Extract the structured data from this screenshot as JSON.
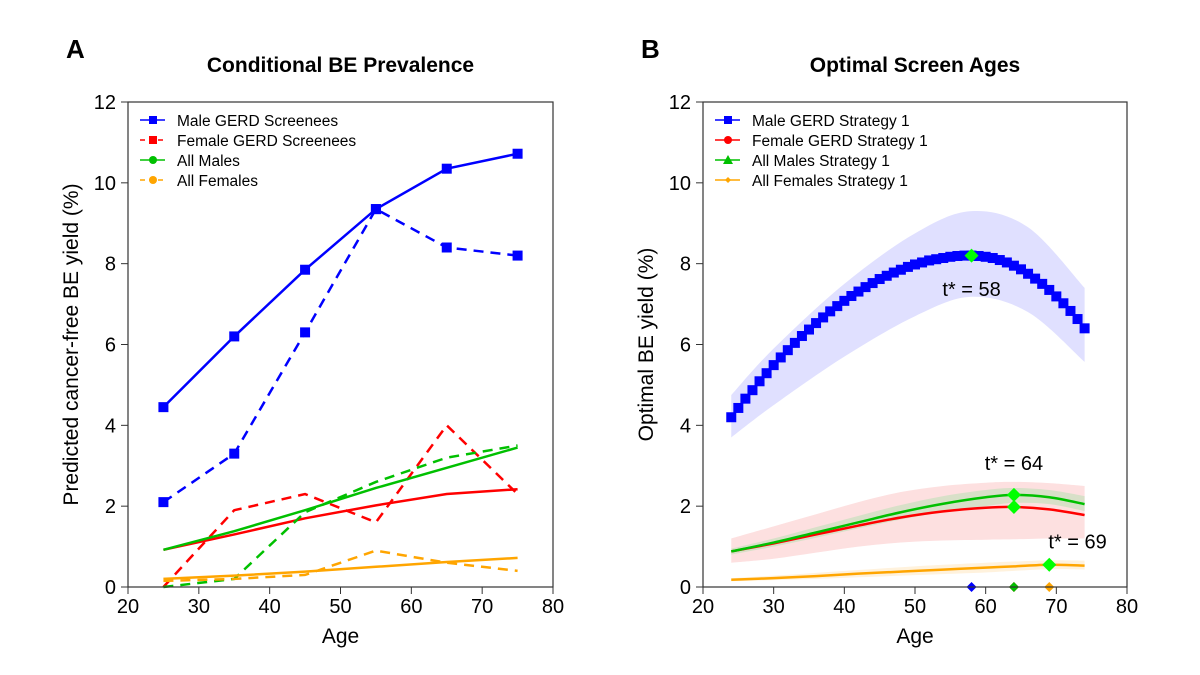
{
  "chart_data": [
    {
      "panel_label": "A",
      "type": "line",
      "title": "Conditional BE Prevalence",
      "xlabel": "Age",
      "ylabel": "Predicted cancer-free BE yield (%)",
      "xlim": [
        20,
        80
      ],
      "ylim": [
        0,
        12
      ],
      "xticks": [
        20,
        30,
        40,
        50,
        60,
        70,
        80
      ],
      "yticks": [
        0,
        2,
        4,
        6,
        8,
        10,
        12
      ],
      "grid": false,
      "legend_position": "top-left",
      "x": [
        25,
        35,
        45,
        55,
        65,
        75
      ],
      "legend": [
        {
          "name": "Male GERD Screenees",
          "color": "#0000ff",
          "marker": "square",
          "dash": "solid"
        },
        {
          "name": "Female GERD Screenees",
          "color": "#ff0000",
          "marker": "square",
          "dash": "dashed"
        },
        {
          "name": "All Males",
          "color": "#00c000",
          "marker": "circle",
          "dash": "solid"
        },
        {
          "name": "All Females",
          "color": "#ffa500",
          "marker": "circle",
          "dash": "dashed"
        }
      ],
      "series": [
        {
          "color": "#0000ff",
          "dash": false,
          "markers": true,
          "values": [
            4.45,
            6.2,
            7.85,
            9.35,
            10.35,
            10.72
          ]
        },
        {
          "color": "#0000ff",
          "dash": true,
          "markers": true,
          "values": [
            2.1,
            3.3,
            6.3,
            9.35,
            8.4,
            8.2
          ]
        },
        {
          "color": "#ff0000",
          "dash": false,
          "markers": false,
          "values": [
            0.92,
            1.3,
            1.7,
            2.02,
            2.3,
            2.42
          ]
        },
        {
          "color": "#ff0000",
          "dash": true,
          "markers": false,
          "values": [
            0.0,
            1.9,
            2.3,
            1.6,
            4.0,
            2.3
          ]
        },
        {
          "color": "#00c000",
          "dash": false,
          "markers": false,
          "values": [
            0.92,
            1.38,
            1.9,
            2.45,
            2.95,
            3.45
          ]
        },
        {
          "color": "#00c000",
          "dash": true,
          "markers": false,
          "values": [
            0.0,
            0.2,
            1.85,
            2.6,
            3.2,
            3.5
          ]
        },
        {
          "color": "#ffa500",
          "dash": false,
          "markers": false,
          "values": [
            0.2,
            0.28,
            0.38,
            0.5,
            0.62,
            0.72
          ]
        },
        {
          "color": "#ffa500",
          "dash": true,
          "markers": false,
          "values": [
            0.15,
            0.2,
            0.3,
            0.9,
            0.6,
            0.4
          ]
        }
      ]
    },
    {
      "panel_label": "B",
      "type": "line",
      "title": "Optimal Screen Ages",
      "xlabel": "Age",
      "ylabel": "Optimal BE yield (%)",
      "xlim": [
        20,
        80
      ],
      "ylim": [
        0,
        12
      ],
      "xticks": [
        20,
        30,
        40,
        50,
        60,
        70,
        80
      ],
      "yticks": [
        0,
        2,
        4,
        6,
        8,
        10,
        12
      ],
      "grid": false,
      "legend_position": "top-left",
      "legend": [
        {
          "name": "Male GERD Strategy 1",
          "color": "#0000ff",
          "marker": "square"
        },
        {
          "name": "Female GERD Strategy 1",
          "color": "#ff0000",
          "marker": "circle"
        },
        {
          "name": "All Males Strategy 1",
          "color": "#00c000",
          "marker": "triangle"
        },
        {
          "name": "All Females Strategy 1",
          "color": "#ffa500",
          "marker": "diamond"
        }
      ],
      "male_gerd": {
        "color": "#0000ff",
        "band_color": "#e0e0ff",
        "x_start": 24,
        "values": [
          4.2,
          4.43,
          4.66,
          4.87,
          5.09,
          5.29,
          5.49,
          5.68,
          5.86,
          6.04,
          6.21,
          6.37,
          6.53,
          6.67,
          6.82,
          6.95,
          7.08,
          7.2,
          7.31,
          7.42,
          7.52,
          7.62,
          7.7,
          7.78,
          7.85,
          7.92,
          7.98,
          8.03,
          8.08,
          8.11,
          8.14,
          8.17,
          8.19,
          8.2,
          8.2,
          8.19,
          8.17,
          8.14,
          8.09,
          8.03,
          7.95,
          7.86,
          7.75,
          7.63,
          7.5,
          7.35,
          7.19,
          7.02,
          6.83,
          6.63,
          6.4
        ],
        "band_x": [
          24,
          30,
          40,
          50,
          58,
          66,
          74
        ],
        "band_upper": [
          4.75,
          5.9,
          7.5,
          8.75,
          9.3,
          8.9,
          7.4
        ],
        "band_lower": [
          3.7,
          4.5,
          5.7,
          6.7,
          7.18,
          6.8,
          5.57
        ]
      },
      "curve_x": [
        24,
        30,
        36,
        42,
        48,
        54,
        60,
        64,
        69,
        74
      ],
      "curves": [
        {
          "color": "#ff0000",
          "band_color": "#fde0e0",
          "values": [
            0.88,
            1.08,
            1.3,
            1.52,
            1.72,
            1.87,
            1.96,
            1.98,
            1.92,
            1.78
          ],
          "band_upper": [
            1.2,
            1.5,
            1.8,
            2.1,
            2.35,
            2.5,
            2.58,
            2.6,
            2.57,
            2.5
          ],
          "band_lower": [
            0.6,
            0.7,
            0.85,
            1.0,
            1.1,
            1.15,
            1.17,
            1.18,
            1.2,
            1.2
          ]
        },
        {
          "color": "#00c000",
          "band_color": "#d8e0c8",
          "values": [
            0.88,
            1.1,
            1.35,
            1.6,
            1.85,
            2.06,
            2.22,
            2.28,
            2.22,
            2.05
          ],
          "band_upper": [
            0.95,
            1.2,
            1.48,
            1.76,
            2.03,
            2.25,
            2.4,
            2.45,
            2.4,
            2.25
          ],
          "band_lower": [
            0.8,
            1.0,
            1.22,
            1.45,
            1.67,
            1.86,
            2.0,
            2.08,
            2.05,
            1.88
          ],
          "on_top": true
        },
        {
          "color": "#ffa500",
          "band_color": "#fff2dd",
          "values": [
            0.18,
            0.22,
            0.27,
            0.33,
            0.38,
            0.43,
            0.48,
            0.51,
            0.55,
            0.53
          ],
          "band_upper": [
            0.22,
            0.28,
            0.35,
            0.42,
            0.49,
            0.55,
            0.6,
            0.63,
            0.66,
            0.65
          ],
          "band_lower": [
            0.14,
            0.17,
            0.2,
            0.24,
            0.28,
            0.32,
            0.36,
            0.4,
            0.44,
            0.43
          ]
        }
      ],
      "optima": [
        {
          "x": 58,
          "y": 8.2
        },
        {
          "x": 64,
          "y": 2.28
        },
        {
          "x": 64,
          "y": 1.98
        },
        {
          "x": 69,
          "y": 0.55
        }
      ],
      "axis_markers": [
        {
          "x": 58,
          "color": "#0000ff"
        },
        {
          "x": 64,
          "color": "#ff0000"
        },
        {
          "x": 64,
          "color": "#00c000"
        },
        {
          "x": 69,
          "color": "#ffa500"
        }
      ],
      "annotations": [
        {
          "text": "t* = 58",
          "x": 58,
          "y": 7.2
        },
        {
          "text": "t* = 64",
          "x": 64,
          "y": 2.9
        },
        {
          "text": "t* = 69",
          "x": 73,
          "y": 0.95
        }
      ]
    }
  ]
}
